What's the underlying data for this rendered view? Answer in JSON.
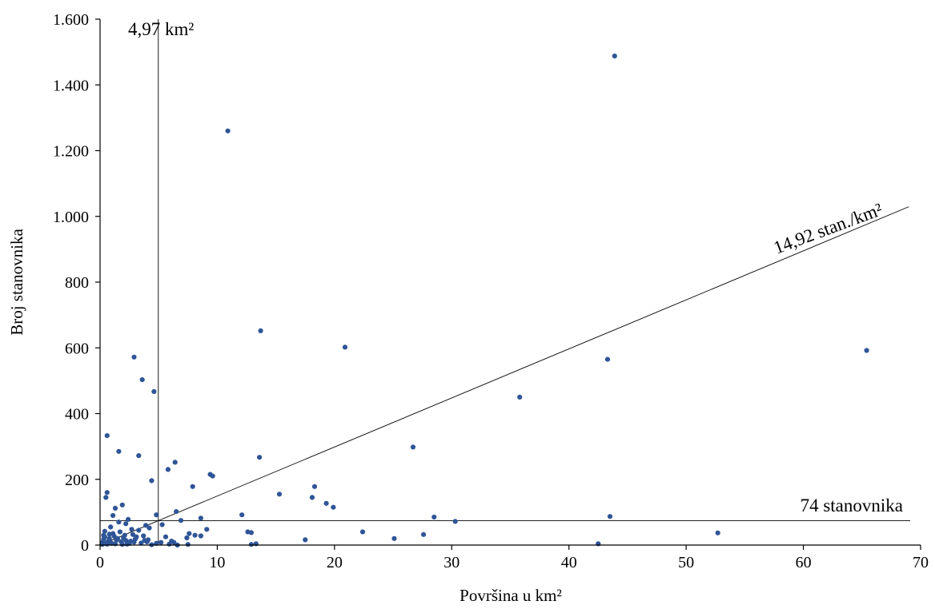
{
  "chart_data": {
    "type": "scatter",
    "title": "",
    "xlabel": "Površina u km²",
    "ylabel": "Broj stanovnika",
    "xlim": [
      0,
      70
    ],
    "ylim": [
      0,
      1600
    ],
    "x_ticks": [
      0,
      10,
      20,
      30,
      40,
      50,
      60,
      70
    ],
    "x_tick_labels": [
      "0",
      "10",
      "20",
      "30",
      "40",
      "50",
      "60",
      "70"
    ],
    "y_ticks": [
      0,
      200,
      400,
      600,
      800,
      1000,
      1200,
      1400,
      1600
    ],
    "y_tick_labels": [
      "0",
      "200",
      "400",
      "600",
      "800",
      "1.000",
      "1.200",
      "1.400",
      "1.600"
    ],
    "grid": false,
    "legend": "none",
    "point_color": "#2f5597",
    "reference_lines": {
      "vertical": {
        "x": 4.97,
        "label": "4,97 km²"
      },
      "horizontal": {
        "y": 74,
        "label": "74 stanovnika"
      },
      "diagonal": {
        "slope": 14.92,
        "label": "14,92 stan./km²"
      }
    },
    "points": [
      [
        43.9,
        1488
      ],
      [
        10.9,
        1260
      ],
      [
        13.7,
        652
      ],
      [
        20.9,
        602
      ],
      [
        65.4,
        592
      ],
      [
        2.9,
        572
      ],
      [
        43.3,
        565
      ],
      [
        3.6,
        503
      ],
      [
        4.6,
        467
      ],
      [
        35.8,
        450
      ],
      [
        0.6,
        333
      ],
      [
        26.7,
        298
      ],
      [
        1.6,
        285
      ],
      [
        3.3,
        272
      ],
      [
        13.6,
        267
      ],
      [
        6.4,
        252
      ],
      [
        5.8,
        230
      ],
      [
        9.4,
        215
      ],
      [
        9.6,
        210
      ],
      [
        4.4,
        196
      ],
      [
        7.9,
        178
      ],
      [
        18.3,
        178
      ],
      [
        0.6,
        160
      ],
      [
        15.3,
        155
      ],
      [
        0.5,
        145
      ],
      [
        18.1,
        145
      ],
      [
        19.3,
        127
      ],
      [
        1.9,
        122
      ],
      [
        19.9,
        115
      ],
      [
        1.3,
        112
      ],
      [
        6.5,
        102
      ],
      [
        12.1,
        92
      ],
      [
        4.8,
        92
      ],
      [
        1.1,
        90
      ],
      [
        43.5,
        87
      ],
      [
        28.5,
        85
      ],
      [
        8.6,
        82
      ],
      [
        2.4,
        78
      ],
      [
        6.9,
        75
      ],
      [
        30.3,
        72
      ],
      [
        1.6,
        70
      ],
      [
        2.2,
        65
      ],
      [
        5.3,
        62
      ],
      [
        3.9,
        60
      ],
      [
        0.9,
        55
      ],
      [
        4.2,
        52
      ],
      [
        9.1,
        48
      ],
      [
        2.7,
        48
      ],
      [
        3.3,
        45
      ],
      [
        0.4,
        42
      ],
      [
        1.7,
        40
      ],
      [
        22.4,
        40
      ],
      [
        12.6,
        40
      ],
      [
        12.9,
        38
      ],
      [
        52.7,
        37
      ],
      [
        7.6,
        35
      ],
      [
        0.8,
        33
      ],
      [
        27.6,
        32
      ],
      [
        8.1,
        30
      ],
      [
        2.1,
        30
      ],
      [
        8.6,
        28
      ],
      [
        1.2,
        27
      ],
      [
        5.6,
        25
      ],
      [
        3.1,
        25
      ],
      [
        2.0,
        22
      ],
      [
        7.4,
        22
      ],
      [
        25.1,
        20
      ],
      [
        0.3,
        18
      ],
      [
        17.5,
        16
      ],
      [
        1.4,
        15
      ],
      [
        2.6,
        12
      ],
      [
        6.1,
        12
      ],
      [
        4.0,
        10
      ],
      [
        0.9,
        8
      ],
      [
        5.2,
        8
      ],
      [
        3.5,
        6
      ],
      [
        42.5,
        4
      ],
      [
        13.3,
        4
      ],
      [
        12.9,
        2
      ],
      [
        7.5,
        2
      ],
      [
        0.2,
        2
      ],
      [
        0.6,
        3
      ],
      [
        1.0,
        5
      ],
      [
        2.3,
        3
      ],
      [
        4.4,
        1
      ],
      [
        6.6,
        0
      ],
      [
        3.8,
        14
      ],
      [
        1.8,
        10
      ],
      [
        0.4,
        25
      ],
      [
        0.7,
        12
      ],
      [
        1.5,
        20
      ],
      [
        2.8,
        32
      ],
      [
        0.2,
        8
      ],
      [
        1.1,
        35
      ],
      [
        2.5,
        5
      ],
      [
        3.0,
        18
      ],
      [
        4.8,
        5
      ],
      [
        5.9,
        3
      ],
      [
        0.3,
        30
      ],
      [
        1.9,
        2
      ],
      [
        2.2,
        14
      ],
      [
        0.5,
        5
      ],
      [
        3.7,
        28
      ],
      [
        4.1,
        16
      ],
      [
        6.3,
        8
      ],
      [
        1.3,
        4
      ],
      [
        0.8,
        20
      ],
      [
        2.9,
        9
      ]
    ]
  }
}
